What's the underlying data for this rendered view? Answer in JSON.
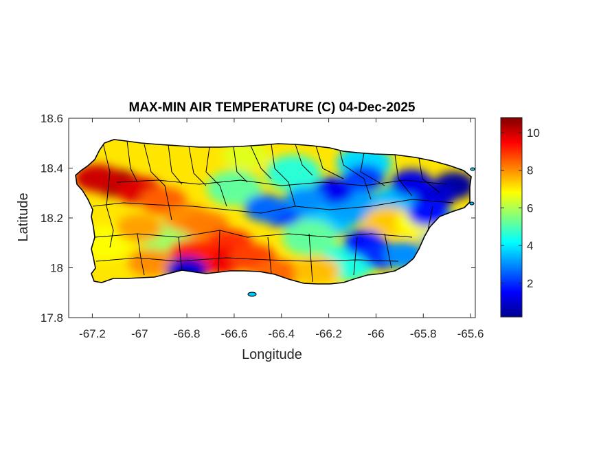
{
  "chart_data": {
    "type": "heatmap",
    "title": "MAX-MIN AIR TEMPERATURE (C) 04-Dec-2025",
    "xlabel": "Longitude",
    "ylabel": "Latitude",
    "xlim": [
      -67.3,
      -65.58
    ],
    "ylim": [
      17.8,
      18.6
    ],
    "xticks": [
      -67.2,
      -67,
      -66.8,
      -66.6,
      -66.4,
      -66.2,
      -66,
      -65.8,
      -65.6
    ],
    "xtick_labels": [
      "-67.2",
      "-67",
      "-66.8",
      "-66.6",
      "-66.4",
      "-66.2",
      "-66",
      "-65.8",
      "-65.6"
    ],
    "yticks": [
      18.6,
      18.4,
      18.2,
      18,
      17.8
    ],
    "ytick_labels": [
      "18.6",
      "18.4",
      "18.2",
      "18",
      "17.8"
    ],
    "colorbar": {
      "colormap": "jet",
      "range": [
        0.2,
        10.8
      ],
      "ticks": [
        2,
        4,
        6,
        8,
        10
      ],
      "tick_labels": [
        "2",
        "4",
        "6",
        "8",
        "10"
      ]
    },
    "grid": false,
    "hotspots": [
      {
        "lon": -67.1,
        "lat": 18.34,
        "value": 10.5
      },
      {
        "lon": -67.0,
        "lat": 18.31,
        "value": 9.8
      },
      {
        "lon": -67.18,
        "lat": 18.36,
        "value": 10.0
      },
      {
        "lon": -66.9,
        "lat": 18.27,
        "value": 8.5
      },
      {
        "lon": -66.8,
        "lat": 18.2,
        "value": 8.0
      },
      {
        "lon": -66.72,
        "lat": 18.17,
        "value": 8.2
      },
      {
        "lon": -66.62,
        "lat": 18.1,
        "value": 9.0
      },
      {
        "lon": -66.65,
        "lat": 18.03,
        "value": 9.6
      },
      {
        "lon": -66.78,
        "lat": 18.06,
        "value": 9.2
      },
      {
        "lon": -66.52,
        "lat": 18.04,
        "value": 8.8
      },
      {
        "lon": -66.42,
        "lat": 17.98,
        "value": 8.4
      },
      {
        "lon": -66.95,
        "lat": 18.02,
        "value": 8.0
      },
      {
        "lon": -67.0,
        "lat": 18.16,
        "value": 7.8
      },
      {
        "lon": -66.25,
        "lat": 17.99,
        "value": 7.5
      },
      {
        "lon": -65.95,
        "lat": 18.19,
        "value": 7.4
      },
      {
        "lon": -65.82,
        "lat": 18.18,
        "value": 6.8
      },
      {
        "lon": -66.55,
        "lat": 18.45,
        "value": 6.5
      }
    ],
    "coldspots": [
      {
        "lon": -65.67,
        "lat": 18.33,
        "value": 0.5
      },
      {
        "lon": -65.75,
        "lat": 18.29,
        "value": 1.0
      },
      {
        "lon": -65.85,
        "lat": 18.34,
        "value": 1.3
      },
      {
        "lon": -65.78,
        "lat": 18.22,
        "value": 1.6
      },
      {
        "lon": -66.18,
        "lat": 18.31,
        "value": 1.4
      },
      {
        "lon": -66.05,
        "lat": 18.36,
        "value": 2.2
      },
      {
        "lon": -66.05,
        "lat": 18.1,
        "value": 1.6
      },
      {
        "lon": -65.97,
        "lat": 18.05,
        "value": 2.0
      },
      {
        "lon": -66.4,
        "lat": 18.22,
        "value": 2.2
      },
      {
        "lon": -66.47,
        "lat": 18.24,
        "value": 2.6
      },
      {
        "lon": -66.3,
        "lat": 18.27,
        "value": 3.0
      },
      {
        "lon": -66.8,
        "lat": 17.99,
        "value": 1.0
      },
      {
        "lon": -65.88,
        "lat": 18.05,
        "value": 3.0
      }
    ]
  }
}
